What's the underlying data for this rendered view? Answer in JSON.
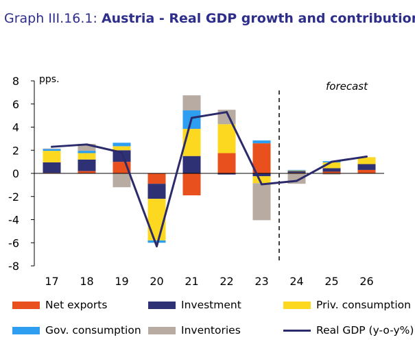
{
  "title": {
    "number": "Graph III.16.1:",
    "text": "Austria - Real GDP growth and contributions"
  },
  "colors": {
    "net_exports": "#e8501e",
    "investment": "#2e3173",
    "priv_consumption": "#fdd820",
    "gov_consumption": "#2e9ef0",
    "inventories": "#b7aba2",
    "real_gdp": "#2b2b6b",
    "title": "#2d2d8c"
  },
  "chart_data": {
    "type": "bar",
    "stacked": true,
    "categories": [
      "17",
      "18",
      "19",
      "20",
      "21",
      "22",
      "23",
      "24",
      "25",
      "26"
    ],
    "series": [
      {
        "name": "Net exports",
        "key": "net_exports",
        "values": [
          0.05,
          0.2,
          1.0,
          -0.9,
          -1.9,
          1.75,
          2.6,
          0.05,
          0.15,
          0.3
        ]
      },
      {
        "name": "Investment",
        "key": "investment",
        "values": [
          0.9,
          1.0,
          1.0,
          -1.3,
          1.5,
          -0.1,
          -0.25,
          0.15,
          0.3,
          0.5
        ]
      },
      {
        "name": "Priv. consumption",
        "key": "priv_consumption",
        "values": [
          1.0,
          0.55,
          0.35,
          -3.6,
          2.35,
          2.5,
          -0.6,
          0.05,
          0.5,
          0.6
        ]
      },
      {
        "name": "Gov. consumption",
        "key": "gov_consumption",
        "values": [
          0.15,
          0.2,
          0.3,
          -0.2,
          1.6,
          0.0,
          0.25,
          0.05,
          0.1,
          0.0
        ]
      },
      {
        "name": "Inventories",
        "key": "inventories",
        "values": [
          0.05,
          0.6,
          -1.2,
          0.0,
          1.3,
          1.25,
          -3.2,
          -0.9,
          -0.1,
          0.0
        ]
      }
    ],
    "line": {
      "name": "Real GDP (y-o-y%)",
      "key": "real_gdp",
      "values": [
        2.3,
        2.5,
        1.8,
        -6.3,
        4.8,
        5.3,
        -0.95,
        -0.65,
        1.0,
        1.45
      ]
    },
    "yunit": "pps.",
    "ylim": [
      -8,
      8
    ],
    "yticks": [
      8,
      6,
      4,
      2,
      0,
      -2,
      -4,
      -6,
      -8
    ],
    "forecast_label": "forecast",
    "forecast_divider_after": "23",
    "grid": false,
    "legend_position": "bottom"
  }
}
